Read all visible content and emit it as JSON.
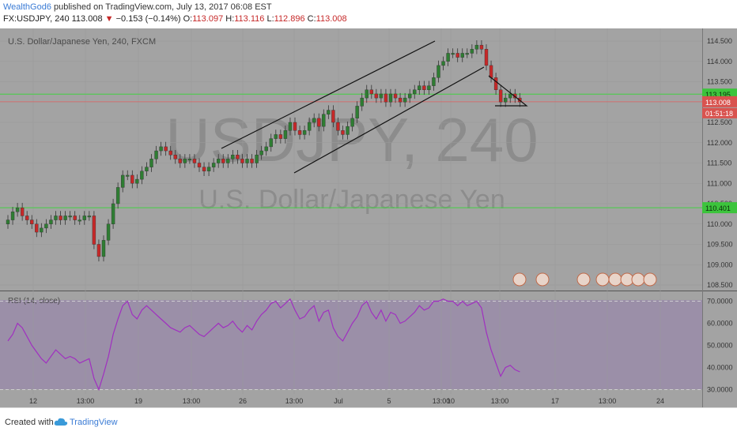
{
  "header": {
    "author": "WealthGod6",
    "published": " published on TradingView.com, July 13, 2017 06:08 EST",
    "symbol": "FX:USDJPY, 240",
    "last": "113.008",
    "arrow": "▼",
    "change": "−0.153 (−0.14%)",
    "o_label": "O:",
    "o_value": "113.097",
    "h_label": "H:",
    "h_value": "113.116",
    "l_label": "L:",
    "l_value": "112.896",
    "c_label": "C:",
    "c_value": "113.008"
  },
  "footer": {
    "created": "Created with",
    "brand": "TradingView"
  },
  "colors": {
    "background": "#a3a3a3",
    "rsi_band": "#9b8fa8",
    "bull": "#2e7d32",
    "bear": "#c62828",
    "level_line": "#43d243",
    "price_line": "#e06060",
    "rsi_line": "#a030c0"
  },
  "chart_data": {
    "type": "candlestick",
    "title": "U.S. Dollar/Japanese Yen, 240, FXCM",
    "watermark_symbol": "USDJPY, 240",
    "watermark_name": "U.S. Dollar/Japanese Yen",
    "y_ticks": [
      "114.500",
      "114.000",
      "113.500",
      "113.000",
      "112.500",
      "112.000",
      "111.500",
      "111.000",
      "110.500",
      "110.000",
      "109.500",
      "109.000",
      "108.500"
    ],
    "ylim": [
      108.5,
      114.75
    ],
    "x_ticks": [
      "12",
      "13:00",
      "19",
      "13:00",
      "26",
      "13:00",
      "Jul",
      "5",
      "13:00",
      "10",
      "13:00",
      "17",
      "13:00",
      "24"
    ],
    "horizontal_levels": [
      {
        "value": 113.195,
        "label": "113.195"
      },
      {
        "value": 110.401,
        "label": "110.401"
      }
    ],
    "last_price": {
      "value": 113.008,
      "label": "113.008"
    },
    "countdown": "01:51:18",
    "candle_closes": [
      110.1,
      110.3,
      110.4,
      110.2,
      110.1,
      110.0,
      109.8,
      109.9,
      110.0,
      110.1,
      110.2,
      110.1,
      110.2,
      110.2,
      110.1,
      110.1,
      110.2,
      110.2,
      109.5,
      109.2,
      109.6,
      110.0,
      110.5,
      110.9,
      111.2,
      111.2,
      111.0,
      111.1,
      111.3,
      111.4,
      111.6,
      111.8,
      111.9,
      111.8,
      111.7,
      111.6,
      111.5,
      111.6,
      111.6,
      111.5,
      111.4,
      111.3,
      111.4,
      111.5,
      111.6,
      111.5,
      111.6,
      111.7,
      111.6,
      111.5,
      111.6,
      111.5,
      111.7,
      111.8,
      111.9,
      112.1,
      112.2,
      112.1,
      112.3,
      112.5,
      112.3,
      112.2,
      112.3,
      112.5,
      112.6,
      112.4,
      112.7,
      112.8,
      112.5,
      112.3,
      112.2,
      112.4,
      112.6,
      112.9,
      113.1,
      113.3,
      113.2,
      113.1,
      113.2,
      113.0,
      113.2,
      113.1,
      113.0,
      113.1,
      113.2,
      113.3,
      113.4,
      113.3,
      113.4,
      113.6,
      113.9,
      114.0,
      114.2,
      114.2,
      114.1,
      114.2,
      114.2,
      114.3,
      114.4,
      114.3,
      113.9,
      113.6,
      113.3,
      113.0,
      113.1,
      113.2,
      113.1,
      113.0
    ],
    "rsi": {
      "label": "RSI (14, close)",
      "y_ticks": [
        "70.0000",
        "60.0000",
        "50.0000",
        "40.0000",
        "30.0000"
      ],
      "ylim": [
        28,
        72
      ],
      "values": [
        52,
        55,
        60,
        58,
        54,
        50,
        47,
        44,
        42,
        45,
        48,
        46,
        44,
        45,
        44,
        42,
        43,
        44,
        35,
        30,
        37,
        45,
        55,
        62,
        68,
        70,
        64,
        62,
        66,
        68,
        66,
        64,
        62,
        60,
        58,
        57,
        56,
        58,
        59,
        57,
        55,
        54,
        56,
        58,
        60,
        58,
        59,
        61,
        58,
        56,
        59,
        57,
        61,
        64,
        66,
        69,
        70,
        67,
        69,
        71,
        66,
        62,
        63,
        66,
        68,
        61,
        65,
        66,
        58,
        54,
        52,
        56,
        60,
        63,
        68,
        70,
        65,
        62,
        66,
        61,
        65,
        64,
        60,
        61,
        63,
        65,
        68,
        66,
        67,
        70,
        70,
        71,
        70,
        70,
        68,
        70,
        68,
        69,
        70,
        67,
        56,
        48,
        42,
        36,
        40,
        41,
        39,
        38
      ]
    }
  }
}
